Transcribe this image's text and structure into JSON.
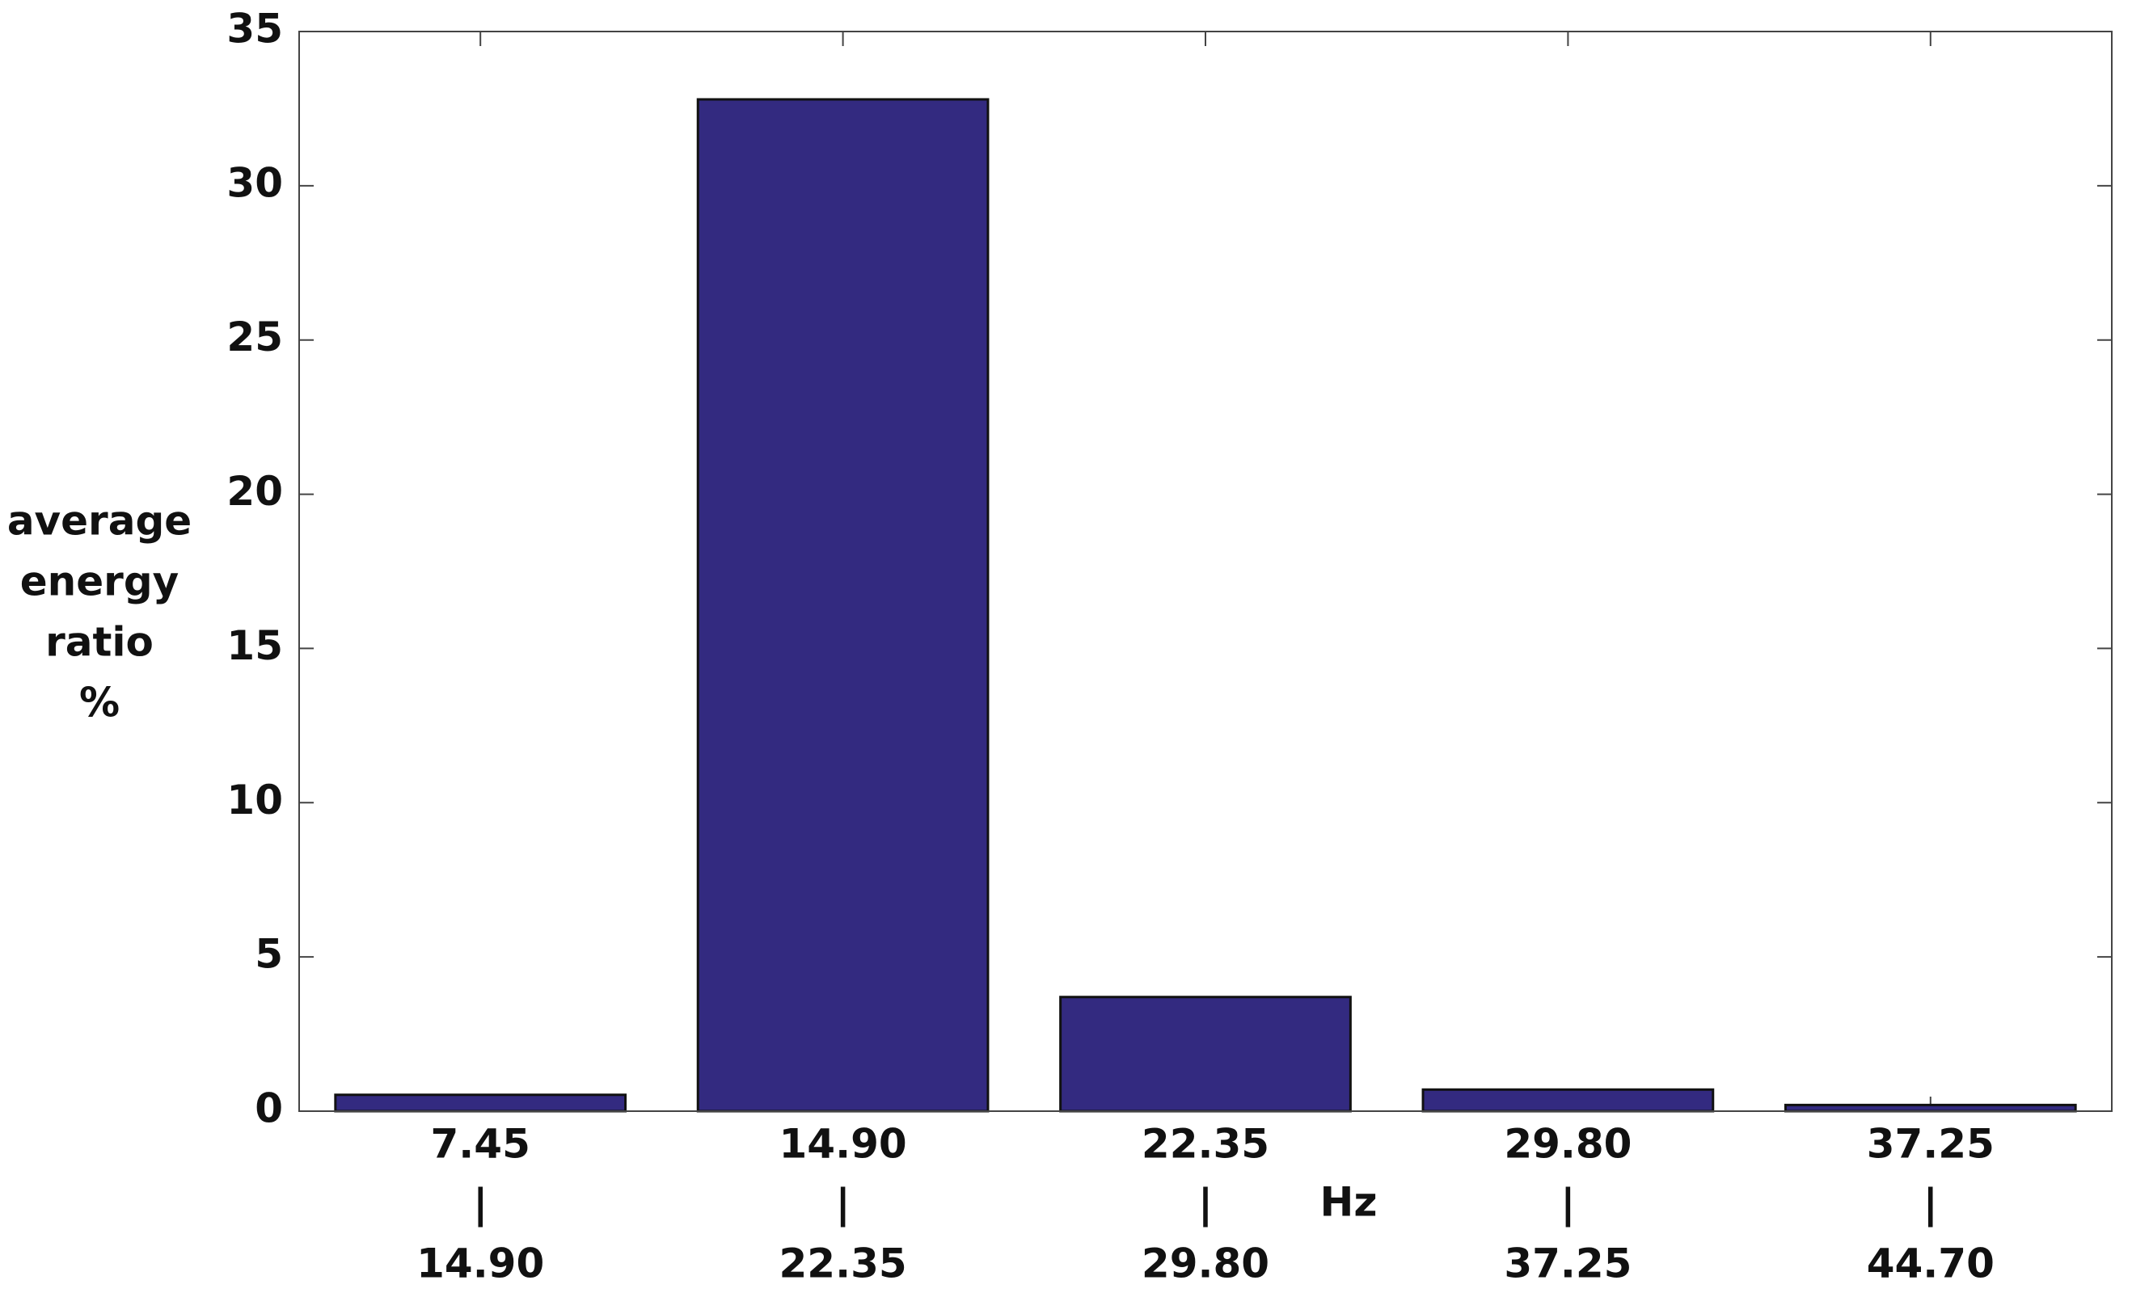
{
  "chart_data": {
    "type": "bar",
    "ylabel": [
      "average",
      "energy",
      "ratio",
      "%"
    ],
    "xlabel": "Hz",
    "categories": [
      [
        "7.45",
        "|",
        "14.90"
      ],
      [
        "14.90",
        "|",
        "22.35"
      ],
      [
        "22.35",
        "|",
        "29.80"
      ],
      [
        "29.80",
        "|",
        "37.25"
      ],
      [
        "37.25",
        "|",
        "44.70"
      ]
    ],
    "values": [
      0.53,
      32.8,
      3.7,
      0.7,
      0.2
    ],
    "color": "#332a80",
    "ylim": [
      0,
      35
    ],
    "yticks": [
      0,
      5,
      10,
      15,
      20,
      25,
      30,
      35
    ],
    "grid": false
  }
}
